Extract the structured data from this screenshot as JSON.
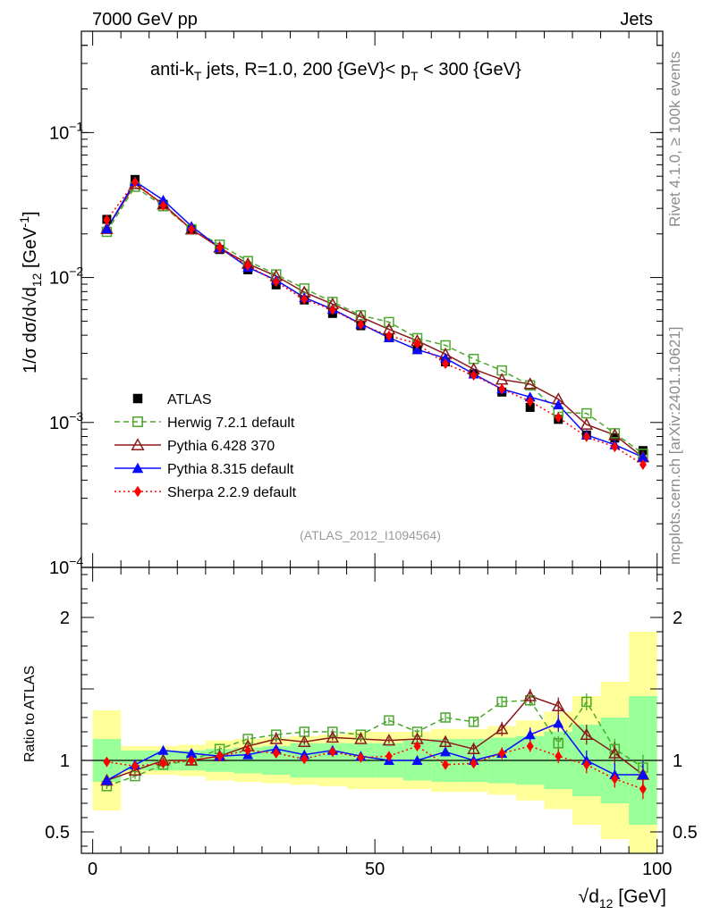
{
  "header": {
    "energy_label": "7000 GeV pp",
    "category_label": "Jets",
    "title_prefix": "anti-k",
    "title_sub_t": "T",
    "title_mid": " jets, R=1.0, 200 {GeV}< p",
    "title_sub_pt": "T",
    "title_suffix": " < 300 {GeV}",
    "analysis_id": "(ATLAS_2012_I1094564)",
    "rivet_label": "Rivet 4.1.0, ≥ 100k events",
    "mcplots_label": "mcplots.cern.ch [arXiv:2401.10621]"
  },
  "axes": {
    "main_ylabel_pre": "1/σ dσ/d√d",
    "main_ylabel_sub": "12",
    "main_ylabel_post": " [GeV",
    "main_ylabel_sup": "-1",
    "main_ylabel_end": "]",
    "ratio_ylabel": "Ratio to ATLAS",
    "xlabel_root": "√",
    "xlabel_var": "d",
    "xlabel_sub": "12",
    "xlabel_unit": " [GeV]",
    "main_ticks": [
      {
        "base": "10",
        "exp": "−1",
        "value": 0.1
      },
      {
        "base": "10",
        "exp": "−2",
        "value": 0.01
      },
      {
        "base": "10",
        "exp": "−3",
        "value": 0.001
      },
      {
        "base": "10",
        "exp": "−4",
        "value": 0.0001
      }
    ],
    "ratio_ticks": [
      {
        "text": "2",
        "value": 2
      },
      {
        "text": "1",
        "value": 1
      },
      {
        "text": "0.5",
        "value": 0.5
      }
    ],
    "x_ticks": [
      {
        "text": "0",
        "value": 0
      },
      {
        "text": "50",
        "value": 50
      },
      {
        "text": "100",
        "value": 100
      }
    ]
  },
  "legend": [
    {
      "label": "ATLAS",
      "key": "atlas"
    },
    {
      "label": "Herwig 7.2.1 default",
      "key": "herwig"
    },
    {
      "label": "Pythia 6.428 370",
      "key": "py6"
    },
    {
      "label": "Pythia 8.315 default",
      "key": "py8"
    },
    {
      "label": "Sherpa 2.2.9 default",
      "key": "sherpa"
    }
  ],
  "colors": {
    "atlas": "#000000",
    "herwig": "#4ca72e",
    "py6": "#8b1a1a",
    "py8": "#0a0aff",
    "sherpa": "#ff0000",
    "band_inner": "#99ff99",
    "band_outer": "#ffff99"
  },
  "chart_data": {
    "type": "line",
    "xlabel": "√d12 [GeV]",
    "ylabel": "1/σ dσ/d√d12 [GeV^-1]",
    "main_ylim": [
      0.0001,
      0.5
    ],
    "main_yscale": "log",
    "ratio_ylim": [
      0.35,
      2.35
    ],
    "ratio_ylabel": "Ratio to ATLAS",
    "xlim": [
      -2,
      101
    ],
    "x": [
      2.5,
      7.5,
      12.5,
      17.5,
      22.5,
      27.5,
      32.5,
      37.5,
      42.5,
      47.5,
      52.5,
      57.5,
      62.5,
      67.5,
      72.5,
      77.5,
      82.5,
      87.5,
      92.5,
      97.5
    ],
    "atlas": [
      0.0252,
      0.0475,
      0.032,
      0.0215,
      0.0156,
      0.0113,
      0.0089,
      0.007,
      0.00565,
      0.00465,
      0.00385,
      0.00318,
      0.00262,
      0.00216,
      0.00162,
      0.00127,
      0.00105,
      0.00082,
      0.00078,
      0.00064
    ],
    "band_inner": [
      0.15,
      0.07,
      0.07,
      0.07,
      0.08,
      0.09,
      0.1,
      0.12,
      0.12,
      0.12,
      0.12,
      0.14,
      0.15,
      0.15,
      0.16,
      0.17,
      0.2,
      0.25,
      0.3,
      0.45
    ],
    "band_outer": [
      0.35,
      0.1,
      0.1,
      0.11,
      0.14,
      0.15,
      0.16,
      0.17,
      0.18,
      0.2,
      0.2,
      0.2,
      0.22,
      0.22,
      0.24,
      0.28,
      0.34,
      0.45,
      0.55,
      0.9
    ],
    "series": [
      {
        "name": "Herwig 7.2.1 default",
        "key": "herwig",
        "ratio": [
          0.82,
          0.89,
          0.97,
          1.0,
          1.08,
          1.15,
          1.18,
          1.2,
          1.2,
          1.18,
          1.28,
          1.2,
          1.3,
          1.27,
          1.41,
          1.42,
          1.12,
          1.41,
          1.08,
          0.95
        ],
        "ratio_err": [
          0.02,
          0.02,
          0.02,
          0.02,
          0.02,
          0.02,
          0.02,
          0.02,
          0.02,
          0.02,
          0.02,
          0.02,
          0.03,
          0.03,
          0.04,
          0.04,
          0.05,
          0.06,
          0.07,
          0.09
        ]
      },
      {
        "name": "Pythia 6.428 370",
        "key": "py6",
        "ratio": [
          0.86,
          0.93,
          1.0,
          1.0,
          1.03,
          1.1,
          1.15,
          1.13,
          1.16,
          1.15,
          1.14,
          1.15,
          1.13,
          1.08,
          1.22,
          1.45,
          1.38,
          1.18,
          1.05,
          0.9
        ],
        "ratio_err": [
          0.02,
          0.02,
          0.02,
          0.02,
          0.02,
          0.02,
          0.02,
          0.02,
          0.02,
          0.02,
          0.02,
          0.03,
          0.03,
          0.04,
          0.05,
          0.05,
          0.06,
          0.07,
          0.08,
          0.1
        ]
      },
      {
        "name": "Pythia 8.315 default",
        "key": "py8",
        "ratio": [
          0.86,
          0.97,
          1.07,
          1.05,
          1.03,
          1.04,
          1.08,
          1.04,
          1.07,
          1.03,
          1.0,
          1.0,
          1.06,
          1.0,
          1.05,
          1.18,
          1.26,
          1.0,
          0.9,
          0.9
        ],
        "ratio_err": [
          0.02,
          0.02,
          0.02,
          0.02,
          0.02,
          0.02,
          0.02,
          0.02,
          0.02,
          0.02,
          0.02,
          0.03,
          0.03,
          0.04,
          0.04,
          0.05,
          0.06,
          0.07,
          0.08,
          0.1
        ]
      },
      {
        "name": "Sherpa 2.2.9 default",
        "key": "sherpa",
        "ratio": [
          0.99,
          0.96,
          0.98,
          1.0,
          1.03,
          1.07,
          1.05,
          1.01,
          1.06,
          1.02,
          1.03,
          1.1,
          0.97,
          0.98,
          1.05,
          1.1,
          1.03,
          0.97,
          0.87,
          0.8
        ],
        "ratio_err": [
          0.02,
          0.02,
          0.02,
          0.02,
          0.02,
          0.02,
          0.02,
          0.02,
          0.02,
          0.02,
          0.02,
          0.03,
          0.03,
          0.03,
          0.04,
          0.04,
          0.05,
          0.06,
          0.06,
          0.07
        ]
      }
    ]
  }
}
